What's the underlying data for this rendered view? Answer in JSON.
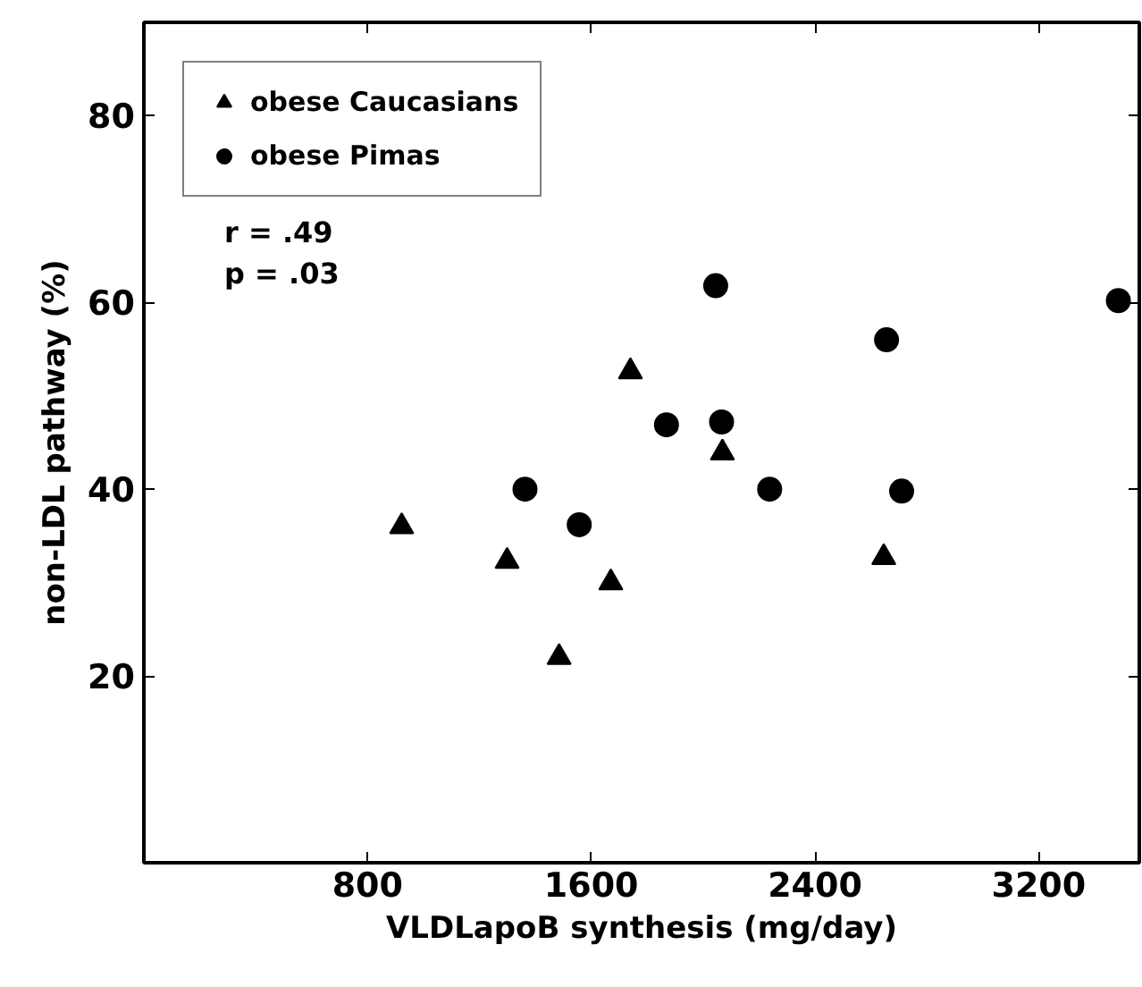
{
  "chart_data": {
    "type": "scatter",
    "xlabel": "VLDLapoB synthesis (mg/day)",
    "ylabel": "non-LDL pathway (%)",
    "xlim": [
      0,
      3560
    ],
    "ylim": [
      0,
      90
    ],
    "xticks": [
      800,
      1600,
      2400,
      3200
    ],
    "yticks": [
      20,
      40,
      60,
      80
    ],
    "grid": false,
    "legend": "top left",
    "annotations": [
      "r = .49\np = .03"
    ],
    "series": [
      {
        "name": "obese Caucasians",
        "color": "#000000",
        "marker": "triangle",
        "x": [
          922,
          1299,
          1485,
          1670,
          1740,
          2069,
          2646
        ],
        "values": [
          36,
          32.3,
          22,
          30,
          52.6,
          43.9,
          32.7
        ]
      },
      {
        "name": "obese Pimas",
        "color": "#000000",
        "marker": "circle",
        "x": [
          1363,
          1557,
          1869,
          2045,
          2066,
          2238,
          2656,
          2710,
          3485
        ],
        "values": [
          40,
          36.2,
          46.9,
          61.8,
          47.2,
          40,
          56,
          39.8,
          60.2
        ]
      }
    ]
  }
}
